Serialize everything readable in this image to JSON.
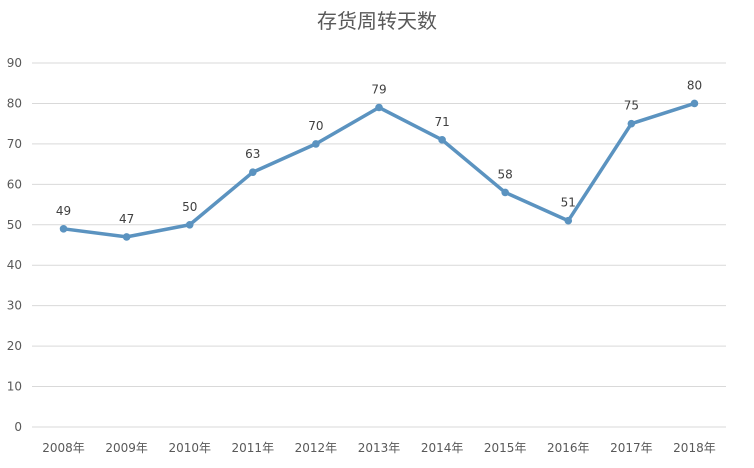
{
  "chart_data": {
    "type": "line",
    "title": "存货周转天数",
    "categories": [
      "2008年",
      "2009年",
      "2010年",
      "2011年",
      "2012年",
      "2013年",
      "2014年",
      "2015年",
      "2016年",
      "2017年",
      "2018年"
    ],
    "series": [
      {
        "values": [
          49,
          47,
          50,
          63,
          70,
          79,
          71,
          58,
          51,
          75,
          80
        ]
      }
    ],
    "yticks": [
      "0",
      "10",
      "20",
      "30",
      "40",
      "50",
      "60",
      "70",
      "80",
      "90"
    ],
    "data_labels": [
      "49",
      "47",
      "50",
      "63",
      "70",
      "79",
      "71",
      "58",
      "51",
      "75",
      "80"
    ],
    "ylim": [
      0,
      90
    ],
    "grid": true,
    "legend": "none",
    "colors": {
      "line": "#5b93c0",
      "grid": "#d9d9d9",
      "text": "#595959"
    }
  }
}
